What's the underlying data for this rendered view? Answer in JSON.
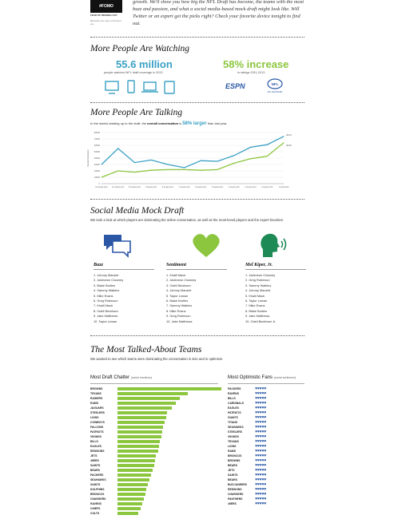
{
  "header": {
    "logo": "#FOMO",
    "logo_sub": "FEAR OF MISSING OUT",
    "logo_sub2": "Because you may not know it yet.",
    "intro": "growth. We'll show you how big the NFL Draft has become, the teams with the most buzz and passion, and what a social media-based mock draft might look like. Will Twitter or an expert get the picks right? Check your favorite device tonight to find out."
  },
  "watching": {
    "title": "More People Are Watching",
    "stat1_value": "55.6 million",
    "stat1_caption": "people watched NFL draft coverage in 2013",
    "stat2_value": "58% increase",
    "stat2_caption": "in ratings 2011-2013",
    "logos": [
      "ESPN",
      "NFL NETWORK"
    ],
    "icons": [
      "tv-icon",
      "smartphone-icon",
      "laptop-icon",
      "tablet-icon"
    ],
    "colors": {
      "blue": "#39a0c4",
      "green": "#8cc63f"
    }
  },
  "talking": {
    "title": "More People Are Talking",
    "sub_pre": "In the weeks leading up to the draft, the",
    "sub_bold": "overall conversation",
    "sub_is": "is",
    "sub_pct": "58% larger",
    "sub_post": "than last year."
  },
  "chart_data": {
    "type": "line",
    "title": "",
    "xlabel": "",
    "ylabel": "Social mentions",
    "x": [
      "12 weeks prior",
      "11 weeks prior",
      "10 weeks prior",
      "9 weeks prior",
      "8 weeks prior",
      "7 weeks prior",
      "6 weeks prior",
      "5 weeks prior",
      "4 weeks prior",
      "3 weeks prior",
      "2 weeks prior",
      "1 week prior"
    ],
    "ylim": [
      0,
      80000
    ],
    "yticks": [
      "0",
      "10000",
      "20000",
      "30000",
      "40000",
      "50000",
      "60000",
      "70000",
      "80000"
    ],
    "series": [
      {
        "name": "2014",
        "color": "#39a0c4",
        "values": [
          30000,
          55000,
          33000,
          37000,
          30000,
          25000,
          36000,
          35000,
          44000,
          57000,
          61000,
          74000
        ]
      },
      {
        "name": "2013",
        "color": "#8cc63f",
        "values": [
          10000,
          20000,
          18000,
          21000,
          22000,
          22000,
          21000,
          22000,
          32000,
          39000,
          43000,
          64000
        ]
      }
    ],
    "legend": "right"
  },
  "mock": {
    "title": "Social Media Mock Draft",
    "sub": "We took a look at which players are dominating the online conversation, as well as the most-loved players and the expert favorites.",
    "columns": [
      {
        "head": "Buzz",
        "icon": "chat-bubbles-icon",
        "items": [
          "1. Johnny Manziel",
          "2. Jadeveon Clowney",
          "3. Blake Bortles",
          "4. Sammy Watkins",
          "5. Mike Evans",
          "6. Greg Robinson",
          "7. Khalil Mack",
          "8. Odell Beckham",
          "9. Jake Matthews",
          "10. Taylor Lewan"
        ]
      },
      {
        "head": "Sentiment",
        "icon": "heart-icon",
        "items": [
          "1. Khalil Mack",
          "2. Jadeveon Clowney",
          "3. Odell Beckham",
          "4. Johnny Manziel",
          "5. Taylor Lewan",
          "6. Blake Bortles",
          "7. Sammy Watkins",
          "8. Mike Evans",
          "9. Greg Robinson",
          "10. Jake Matthews"
        ]
      },
      {
        "head": "Mel Kiper, Jr.",
        "icon": "speaking-head-icon",
        "items": [
          "1. Jadeveon Clowney",
          "2. Greg Robinson",
          "3. Sammy Watkins",
          "4. Johnny Manziel",
          "5. Khalil Mack",
          "6. Taylor Lewan",
          "7. Mike Evans",
          "8. Blake Bortles",
          "9. Jake Matthews",
          "10. Odell Beckham Jr."
        ]
      }
    ]
  },
  "teams": {
    "title": "The Most Talked-About Teams",
    "sub": "We wanted to see which teams were dominating the conversation in size and in optimism.",
    "chatter_title": "Most Draft Chatter",
    "chatter_unit": "(social mentions)",
    "optimism_title": "Most Optimistic Fans",
    "optimism_unit": "(social sentiment)",
    "chatter": [
      {
        "team": "BROWNS",
        "value": 100
      },
      {
        "team": "TEXANS",
        "value": 68
      },
      {
        "team": "RAIDERS",
        "value": 60
      },
      {
        "team": "RAMS",
        "value": 56
      },
      {
        "team": "JAGUARS",
        "value": 52
      },
      {
        "team": "STEELERS",
        "value": 48
      },
      {
        "team": "LIONS",
        "value": 47
      },
      {
        "team": "COWBOYS",
        "value": 45
      },
      {
        "team": "FALCONS",
        "value": 44
      },
      {
        "team": "PATRIOTS",
        "value": 43
      },
      {
        "team": "VIKINGS",
        "value": 42
      },
      {
        "team": "BILLS",
        "value": 41
      },
      {
        "team": "EAGLES",
        "value": 40
      },
      {
        "team": "REDSKINS",
        "value": 39
      },
      {
        "team": "JETS",
        "value": 37
      },
      {
        "team": "49ERS",
        "value": 36
      },
      {
        "team": "SAINTS",
        "value": 35
      },
      {
        "team": "BEARS",
        "value": 34
      },
      {
        "team": "PACKERS",
        "value": 32
      },
      {
        "team": "SEAHAWKS",
        "value": 31
      },
      {
        "team": "SAINTS",
        "value": 29
      },
      {
        "team": "DOLPHINS",
        "value": 28
      },
      {
        "team": "BRONCOS",
        "value": 27
      },
      {
        "team": "CHARGERS",
        "value": 25
      },
      {
        "team": "RAVENS",
        "value": 24
      },
      {
        "team": "CHIEFS",
        "value": 22
      },
      {
        "team": "COLTS",
        "value": 20
      }
    ],
    "optimism": [
      {
        "team": "PACKERS",
        "hearts": 5
      },
      {
        "team": "RAVENS",
        "hearts": 5
      },
      {
        "team": "BILLS",
        "hearts": 5
      },
      {
        "team": "CARDINALS",
        "hearts": 5
      },
      {
        "team": "EAGLES",
        "hearts": 5
      },
      {
        "team": "PATRIOTS",
        "hearts": 5
      },
      {
        "team": "GIANTS",
        "hearts": 5
      },
      {
        "team": "TITANS",
        "hearts": 5
      },
      {
        "team": "SEAHAWKS",
        "hearts": 5
      },
      {
        "team": "STEELERS",
        "hearts": 5
      },
      {
        "team": "VIKINGS",
        "hearts": 5
      },
      {
        "team": "TEXANS",
        "hearts": 5
      },
      {
        "team": "LIONS",
        "hearts": 5
      },
      {
        "team": "RAMS",
        "hearts": 5
      },
      {
        "team": "BRONCOS",
        "hearts": 5
      },
      {
        "team": "BROWNS",
        "hearts": 5
      },
      {
        "team": "BEARS",
        "hearts": 5
      },
      {
        "team": "JETS",
        "hearts": 5
      },
      {
        "team": "SAINTS",
        "hearts": 5
      },
      {
        "team": "BEARS",
        "hearts": 5
      },
      {
        "team": "BUCCANEERS",
        "hearts": 5
      },
      {
        "team": "REDSKINS",
        "hearts": 5
      },
      {
        "team": "CHARGERS",
        "hearts": 5
      },
      {
        "team": "PANTHERS",
        "hearts": 5
      },
      {
        "team": "49ERS",
        "hearts": 5
      }
    ]
  }
}
